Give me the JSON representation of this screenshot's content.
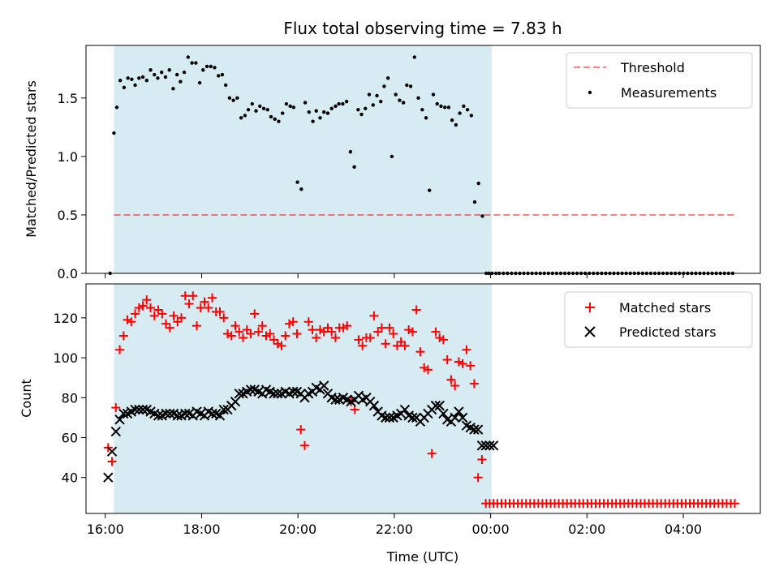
{
  "title": "Flux total observing time = 7.83 h",
  "colors": {
    "shade": "#add8e6",
    "threshold": "#ff0000",
    "measurement": "#000000",
    "matched": "#ff0000",
    "predicted": "#000000"
  },
  "chart_data": [
    {
      "type": "scatter",
      "panel": "top",
      "ylabel": "Matched/Predicted stars",
      "xlabel": "",
      "x_unit": "hours since 16:00 UTC",
      "xlim": [
        -0.4,
        13.6
      ],
      "ylim": [
        0,
        1.95
      ],
      "yticks": [
        0.0,
        0.5,
        1.0,
        1.5
      ],
      "ytick_labels": [
        "0.0",
        "0.5",
        "1.0",
        "1.5"
      ],
      "shaded_span": [
        0.18,
        8.02
      ],
      "legend": {
        "position": "top-right",
        "entries": [
          "Threshold",
          "Measurements"
        ]
      },
      "threshold": {
        "name": "Threshold",
        "y": 0.5,
        "x_range": [
          0.18,
          13.1
        ]
      },
      "series": [
        {
          "name": "Measurements",
          "marker": "dot",
          "x": [
            0.1,
            0.18,
            0.24,
            0.31,
            0.39,
            0.47,
            0.55,
            0.62,
            0.7,
            0.78,
            0.86,
            0.94,
            1.02,
            1.09,
            1.17,
            1.25,
            1.33,
            1.41,
            1.49,
            1.56,
            1.64,
            1.72,
            1.8,
            1.88,
            1.96,
            2.03,
            2.11,
            2.19,
            2.27,
            2.35,
            2.43,
            2.5,
            2.58,
            2.66,
            2.74,
            2.82,
            2.9,
            2.97,
            3.05,
            3.13,
            3.21,
            3.29,
            3.37,
            3.44,
            3.52,
            3.6,
            3.68,
            3.76,
            3.84,
            3.91,
            3.99,
            4.07,
            4.15,
            4.23,
            4.31,
            4.38,
            4.46,
            4.54,
            4.62,
            4.7,
            4.78,
            4.85,
            4.93,
            5.01,
            5.09,
            5.17,
            5.25,
            5.32,
            5.4,
            5.48,
            5.56,
            5.64,
            5.72,
            5.79,
            5.87,
            5.95,
            6.03,
            6.11,
            6.19,
            6.26,
            6.34,
            6.42,
            6.5,
            6.58,
            6.66,
            6.73,
            6.81,
            6.89,
            6.97,
            7.05,
            7.13,
            7.2,
            7.28,
            7.36,
            7.44,
            7.52,
            7.6,
            7.67,
            7.75,
            7.83,
            7.91,
            7.97,
            8.03,
            8.11
          ],
          "y": [
            0.0,
            1.2,
            1.42,
            1.65,
            1.59,
            1.67,
            1.66,
            1.61,
            1.67,
            1.68,
            1.65,
            1.74,
            1.7,
            1.67,
            1.72,
            1.68,
            1.74,
            1.58,
            1.7,
            1.64,
            1.72,
            1.85,
            1.8,
            1.8,
            1.63,
            1.74,
            1.77,
            1.77,
            1.76,
            1.69,
            1.7,
            1.61,
            1.5,
            1.48,
            1.5,
            1.33,
            1.35,
            1.4,
            1.45,
            1.39,
            1.43,
            1.41,
            1.4,
            1.34,
            1.32,
            1.3,
            1.37,
            1.45,
            1.43,
            1.42,
            0.78,
            0.72,
            1.46,
            1.38,
            1.3,
            1.39,
            1.33,
            1.38,
            1.37,
            1.41,
            1.43,
            1.45,
            1.45,
            1.47,
            1.04,
            0.91,
            1.4,
            1.36,
            1.41,
            1.53,
            1.44,
            1.52,
            1.47,
            1.6,
            1.67,
            1.0,
            1.53,
            1.48,
            1.46,
            1.61,
            1.6,
            1.85,
            1.5,
            1.4,
            1.33,
            0.71,
            1.53,
            1.45,
            1.43,
            1.42,
            1.42,
            1.31,
            1.27,
            1.37,
            1.43,
            1.4,
            1.35,
            0.61,
            0.77,
            0.49,
            0.0,
            0.0,
            0.0,
            0.0
          ]
        },
        {
          "name": "Measurements (post-shade)",
          "marker": "dot",
          "x_start": 8.18,
          "x_end": 13.1,
          "x_step": 0.085,
          "value": 0.0
        }
      ]
    },
    {
      "type": "scatter",
      "panel": "bottom",
      "ylabel": "Count",
      "xlabel": "Time (UTC)",
      "x_unit": "hours since 16:00 UTC",
      "xlim": [
        -0.4,
        13.6
      ],
      "ylim": [
        22,
        137
      ],
      "yticks": [
        40,
        60,
        80,
        100,
        120
      ],
      "ytick_labels": [
        "40",
        "60",
        "80",
        "100",
        "120"
      ],
      "xticks": [
        0,
        2,
        4,
        6,
        8,
        10,
        12
      ],
      "xtick_labels": [
        "16:00",
        "18:00",
        "20:00",
        "22:00",
        "00:00",
        "02:00",
        "04:00"
      ],
      "shaded_span": [
        0.18,
        8.02
      ],
      "legend": {
        "position": "top-right",
        "entries": [
          "Matched stars",
          "Predicted stars"
        ]
      },
      "series": [
        {
          "name": "Matched stars",
          "marker": "plus",
          "x": [
            0.06,
            0.14,
            0.22,
            0.3,
            0.38,
            0.46,
            0.54,
            0.62,
            0.7,
            0.78,
            0.86,
            0.94,
            1.02,
            1.1,
            1.18,
            1.26,
            1.34,
            1.42,
            1.5,
            1.58,
            1.66,
            1.74,
            1.82,
            1.9,
            1.98,
            2.06,
            2.14,
            2.22,
            2.3,
            2.38,
            2.46,
            2.54,
            2.62,
            2.7,
            2.78,
            2.86,
            2.94,
            3.02,
            3.1,
            3.18,
            3.26,
            3.34,
            3.42,
            3.5,
            3.58,
            3.66,
            3.74,
            3.82,
            3.9,
            3.98,
            4.06,
            4.14,
            4.22,
            4.3,
            4.38,
            4.46,
            4.54,
            4.62,
            4.7,
            4.78,
            4.86,
            4.94,
            5.02,
            5.1,
            5.18,
            5.26,
            5.34,
            5.42,
            5.5,
            5.58,
            5.66,
            5.74,
            5.82,
            5.9,
            5.98,
            6.06,
            6.14,
            6.22,
            6.3,
            6.38,
            6.46,
            6.54,
            6.62,
            6.7,
            6.78,
            6.86,
            6.94,
            7.02,
            7.1,
            7.18,
            7.26,
            7.34,
            7.42,
            7.5,
            7.58,
            7.66,
            7.74,
            7.82,
            7.9,
            7.98,
            8.06
          ],
          "y": [
            55,
            48,
            75,
            104,
            111,
            119,
            118,
            122,
            125,
            126,
            129,
            125,
            121,
            124,
            122,
            117,
            115,
            121,
            118,
            120,
            131,
            127,
            131,
            116,
            125,
            128,
            125,
            130,
            123,
            123,
            120,
            112,
            111,
            116,
            113,
            110,
            114,
            112,
            122,
            113,
            116,
            111,
            112,
            109,
            107,
            106,
            111,
            117,
            118,
            112,
            64,
            56,
            118,
            114,
            110,
            114,
            113,
            115,
            113,
            110,
            115,
            115,
            116,
            78,
            74,
            109,
            106,
            110,
            110,
            121,
            113,
            115,
            107,
            115,
            112,
            106,
            108,
            106,
            114,
            113,
            124,
            103,
            95,
            94,
            52,
            113,
            110,
            109,
            99,
            89,
            86,
            98,
            97,
            104,
            96,
            87,
            40,
            49,
            27,
            27,
            27
          ]
        },
        {
          "name": "Matched stars (post-shade)",
          "marker": "plus",
          "x_start": 8.14,
          "x_end": 13.1,
          "x_step": 0.085,
          "value": 27
        },
        {
          "name": "Predicted stars",
          "marker": "x",
          "x": [
            0.06,
            0.14,
            0.22,
            0.3,
            0.38,
            0.46,
            0.54,
            0.62,
            0.7,
            0.78,
            0.86,
            0.94,
            1.02,
            1.1,
            1.18,
            1.26,
            1.34,
            1.42,
            1.5,
            1.58,
            1.66,
            1.74,
            1.82,
            1.9,
            1.98,
            2.06,
            2.14,
            2.22,
            2.3,
            2.38,
            2.46,
            2.54,
            2.62,
            2.7,
            2.78,
            2.86,
            2.94,
            3.02,
            3.1,
            3.18,
            3.26,
            3.34,
            3.42,
            3.5,
            3.58,
            3.66,
            3.74,
            3.82,
            3.9,
            3.98,
            4.06,
            4.14,
            4.22,
            4.3,
            4.38,
            4.46,
            4.54,
            4.62,
            4.7,
            4.78,
            4.86,
            4.94,
            5.02,
            5.1,
            5.18,
            5.26,
            5.34,
            5.42,
            5.5,
            5.58,
            5.66,
            5.74,
            5.82,
            5.9,
            5.98,
            6.06,
            6.14,
            6.22,
            6.3,
            6.38,
            6.46,
            6.54,
            6.62,
            6.7,
            6.78,
            6.86,
            6.94,
            7.02,
            7.1,
            7.18,
            7.26,
            7.34,
            7.42,
            7.5,
            7.58,
            7.66,
            7.74,
            7.82,
            7.9,
            7.98,
            8.06
          ],
          "y": [
            40,
            53,
            63,
            69,
            72,
            72,
            73,
            74,
            74,
            74,
            74,
            73,
            72,
            71,
            71,
            72,
            72,
            72,
            71,
            71,
            72,
            72,
            71,
            73,
            72,
            71,
            73,
            72,
            72,
            71,
            74,
            74,
            76,
            78,
            82,
            82,
            83,
            84,
            84,
            83,
            82,
            84,
            83,
            82,
            82,
            82,
            83,
            82,
            83,
            83,
            82,
            80,
            82,
            83,
            85,
            84,
            86,
            82,
            80,
            79,
            79,
            80,
            79,
            78,
            79,
            81,
            79,
            80,
            78,
            76,
            73,
            71,
            70,
            70,
            70,
            71,
            72,
            74,
            71,
            70,
            70,
            68,
            70,
            72,
            74,
            76,
            76,
            72,
            69,
            68,
            70,
            73,
            70,
            66,
            65,
            64,
            64,
            56,
            56,
            56,
            56
          ]
        }
      ]
    }
  ]
}
